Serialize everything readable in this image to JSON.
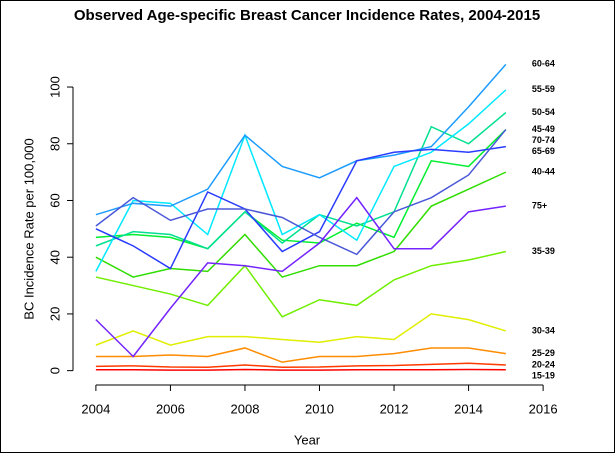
{
  "chart_data": {
    "type": "line",
    "title": "Observed Age-specific Breast Cancer Incidence Rates, 2004-2015",
    "x_label": "Year",
    "y_label": "BC Incidence Rate per 100,000",
    "x": [
      2004,
      2005,
      2006,
      2007,
      2008,
      2009,
      2010,
      2011,
      2012,
      2013,
      2014,
      2015
    ],
    "xlim": [
      2003.52,
      2016.48
    ],
    "xticks": [
      2004,
      2006,
      2008,
      2010,
      2012,
      2014,
      2016
    ],
    "ylim": [
      -4,
      112
    ],
    "yticks": [
      0,
      20,
      40,
      60,
      80,
      100
    ],
    "grid": false,
    "series": [
      {
        "name": "15-19",
        "color": "#ff0000",
        "values": [
          0.3,
          0.3,
          0.2,
          0.2,
          0.4,
          0.2,
          0.2,
          0.3,
          0.3,
          0.3,
          0.4,
          0.3
        ]
      },
      {
        "name": "20-24",
        "color": "#ff3a00",
        "values": [
          1.5,
          1.7,
          1.3,
          1.2,
          2,
          1.2,
          1.3,
          1.7,
          1.8,
          2.2,
          2.6,
          2
        ]
      },
      {
        "name": "25-29",
        "color": "#ff8c00",
        "values": [
          5,
          5,
          5.5,
          5,
          8,
          3,
          5,
          5,
          6,
          8,
          8,
          6
        ]
      },
      {
        "name": "30-34",
        "color": "#e0ee00",
        "values": [
          9,
          14,
          9,
          12,
          12,
          11,
          10,
          12,
          11,
          20,
          18,
          14
        ]
      },
      {
        "name": "35-39",
        "color": "#70ee00",
        "values": [
          33,
          30,
          27,
          23,
          37,
          19,
          25,
          23,
          32,
          37,
          39,
          42
        ]
      },
      {
        "name": "40-44",
        "color": "#30dd00",
        "values": [
          40,
          33,
          36,
          35,
          48,
          33,
          37,
          37,
          42,
          58,
          64,
          70
        ]
      },
      {
        "name": "45-49",
        "color": "#00ee30",
        "values": [
          47,
          48,
          47,
          43,
          56,
          46,
          45,
          52,
          47,
          74,
          72,
          85
        ]
      },
      {
        "name": "50-54",
        "color": "#00e090",
        "values": [
          44,
          49,
          48,
          43,
          56,
          45,
          55,
          51,
          56,
          86,
          80,
          91
        ]
      },
      {
        "name": "55-59",
        "color": "#00e8ff",
        "values": [
          35,
          60,
          59,
          48,
          83,
          48,
          55,
          46,
          72,
          77,
          87,
          99
        ]
      },
      {
        "name": "60-64",
        "color": "#1c9cff",
        "values": [
          55,
          59,
          58,
          64,
          83,
          72,
          68,
          74,
          76,
          79,
          93,
          108
        ]
      },
      {
        "name": "65-69",
        "color": "#2a3cff",
        "values": [
          50,
          44,
          36,
          63,
          57,
          42,
          49,
          74,
          77,
          78,
          77,
          79
        ]
      },
      {
        "name": "70-74",
        "color": "#4a58d8",
        "values": [
          51,
          61,
          53,
          57,
          57,
          54,
          47,
          41,
          56,
          61,
          69,
          85
        ]
      },
      {
        "name": "75+",
        "color": "#7424ff",
        "values": [
          18,
          5,
          22,
          38,
          37,
          35,
          45,
          61,
          43,
          43,
          56,
          58
        ]
      }
    ]
  }
}
